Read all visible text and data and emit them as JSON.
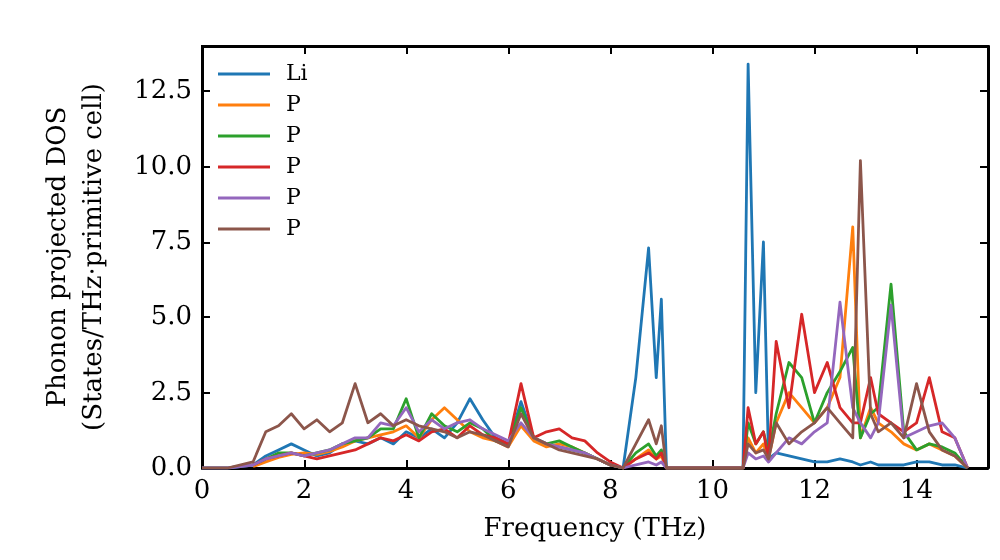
{
  "chart_data": {
    "type": "line",
    "xlabel": "Frequency (THz)",
    "ylabel": "Phonon projected DOS\n(States/THz·primitive cell)",
    "x": [
      0,
      0.5,
      1,
      1.25,
      1.5,
      1.75,
      2,
      2.25,
      2.5,
      2.75,
      3,
      3.25,
      3.5,
      3.75,
      4,
      4.25,
      4.5,
      4.75,
      5,
      5.25,
      5.5,
      5.75,
      6,
      6.25,
      6.5,
      6.75,
      7,
      7.25,
      7.5,
      7.75,
      8,
      8.25,
      8.5,
      8.75,
      8.9,
      9.0,
      9.1,
      9.25,
      10.5,
      10.6,
      10.7,
      10.85,
      11.0,
      11.1,
      11.25,
      11.5,
      11.75,
      12,
      12.25,
      12.5,
      12.75,
      12.9,
      13.1,
      13.25,
      13.5,
      13.75,
      14,
      14.25,
      14.5,
      14.75,
      15
    ],
    "series": [
      {
        "name": "Li",
        "color": "#1f77b4",
        "values": [
          0,
          0,
          0.1,
          0.4,
          0.6,
          0.8,
          0.6,
          0.4,
          0.5,
          0.8,
          0.9,
          0.8,
          1.0,
          0.8,
          1.2,
          1.0,
          1.3,
          1.0,
          1.5,
          2.3,
          1.6,
          1.0,
          0.8,
          2.2,
          1.0,
          0.8,
          0.7,
          0.6,
          0.5,
          0.3,
          0.1,
          0,
          3.0,
          7.3,
          3.0,
          5.6,
          0,
          0,
          0,
          0,
          13.4,
          2.5,
          7.5,
          0.3,
          0.5,
          0.4,
          0.3,
          0.2,
          0.2,
          0.3,
          0.2,
          0.1,
          0.2,
          0.1,
          0.1,
          0.1,
          0.2,
          0.2,
          0.1,
          0.1,
          0
        ]
      },
      {
        "name": "P",
        "color": "#ff7f0e",
        "values": [
          null,
          null,
          0.05,
          0.2,
          0.35,
          0.45,
          0.5,
          0.45,
          0.55,
          0.7,
          0.9,
          1.0,
          1.1,
          1.2,
          1.4,
          1.0,
          1.6,
          2.0,
          1.6,
          1.2,
          1.0,
          0.9,
          0.7,
          1.4,
          0.9,
          0.7,
          0.8,
          0.7,
          0.5,
          0.3,
          0.1,
          0,
          0.3,
          0.6,
          0.3,
          0.4,
          0,
          0,
          0,
          0,
          1.0,
          0.5,
          0.8,
          0.3,
          1.5,
          2.5,
          2.0,
          1.5,
          2.0,
          3.0,
          8.0,
          1.0,
          2.0,
          1.5,
          1.2,
          0.8,
          0.6,
          0.8,
          0.6,
          0.4,
          0
        ]
      },
      {
        "name": "P",
        "color": "#2ca02c",
        "values": [
          null,
          null,
          0.1,
          0.3,
          0.5,
          0.5,
          0.4,
          0.5,
          0.6,
          0.8,
          0.9,
          1.0,
          1.3,
          1.3,
          2.3,
          1.0,
          1.8,
          1.4,
          1.2,
          1.5,
          1.3,
          0.9,
          0.8,
          2.0,
          1.0,
          0.8,
          0.9,
          0.7,
          0.5,
          0.3,
          0.1,
          0,
          0.5,
          0.8,
          0.4,
          0.6,
          0,
          0,
          0,
          0,
          1.5,
          0.8,
          1.2,
          0.5,
          1.8,
          3.5,
          3.0,
          1.5,
          2.5,
          3.2,
          4.0,
          1.0,
          1.8,
          2.0,
          6.1,
          1.2,
          0.6,
          0.8,
          0.7,
          0.5,
          0
        ]
      },
      {
        "name": "P",
        "color": "#d62728",
        "values": [
          null,
          null,
          0.1,
          0.3,
          0.4,
          0.5,
          0.4,
          0.3,
          0.4,
          0.5,
          0.6,
          0.8,
          1.0,
          0.9,
          1.1,
          0.9,
          1.2,
          1.3,
          1.0,
          1.4,
          1.1,
          1.0,
          0.8,
          2.8,
          1.0,
          1.2,
          1.3,
          1.0,
          0.9,
          0.5,
          0.2,
          0,
          0.3,
          0.5,
          0.3,
          0.5,
          0,
          0,
          0,
          0,
          2.0,
          0.8,
          1.2,
          0.3,
          4.2,
          2.0,
          5.1,
          2.5,
          3.5,
          2.0,
          1.5,
          1.5,
          3.0,
          1.8,
          1.5,
          1.2,
          1.5,
          3.0,
          1.2,
          1.0,
          0
        ]
      },
      {
        "name": "P",
        "color": "#9467bd",
        "values": [
          0,
          0,
          0.1,
          0.3,
          0.4,
          0.5,
          0.4,
          0.5,
          0.6,
          0.8,
          1.0,
          1.0,
          1.5,
          1.4,
          2.0,
          1.2,
          1.6,
          1.3,
          1.5,
          1.6,
          1.3,
          1.1,
          0.9,
          1.5,
          1.0,
          0.8,
          0.7,
          0.6,
          0.5,
          0.3,
          0.1,
          0,
          0.1,
          0.2,
          0.1,
          0.2,
          0,
          0,
          0,
          0,
          0.5,
          0.3,
          0.4,
          0.2,
          0.5,
          1.0,
          0.8,
          1.2,
          1.5,
          5.5,
          2.0,
          1.5,
          1.0,
          1.5,
          5.4,
          1.0,
          1.2,
          1.4,
          1.5,
          1.0,
          0
        ]
      },
      {
        "name": "P",
        "color": "#8c564b",
        "values": [
          0,
          0,
          0.2,
          1.2,
          1.4,
          1.8,
          1.3,
          1.6,
          1.2,
          1.5,
          2.8,
          1.5,
          1.8,
          1.4,
          1.6,
          1.4,
          1.3,
          1.2,
          1.0,
          1.2,
          1.1,
          0.9,
          0.7,
          1.8,
          1.0,
          0.8,
          0.6,
          0.5,
          0.4,
          0.3,
          0.1,
          0,
          0.8,
          1.6,
          0.8,
          1.4,
          0,
          0,
          0,
          0,
          0.8,
          0.5,
          0.6,
          0.3,
          1.5,
          0.8,
          1.2,
          1.5,
          2.0,
          1.5,
          1.0,
          10.2,
          1.8,
          1.2,
          1.5,
          1.0,
          2.8,
          1.2,
          0.6,
          0.4,
          0
        ]
      }
    ],
    "xlim": [
      0,
      15.4
    ],
    "xticks": [
      0,
      2,
      4,
      6,
      8,
      10,
      12,
      14
    ],
    "ylim": [
      0,
      14
    ],
    "yticks": [
      {
        "value": 0,
        "label": "0.0"
      },
      {
        "value": 2.5,
        "label": "2.5"
      },
      {
        "value": 5,
        "label": "5.0"
      },
      {
        "value": 7.5,
        "label": "7.5"
      },
      {
        "value": 10,
        "label": "10.0"
      },
      {
        "value": 12.5,
        "label": "12.5"
      }
    ],
    "legend": "top left",
    "grid": false,
    "marker": "none",
    "line_style": "solid"
  }
}
